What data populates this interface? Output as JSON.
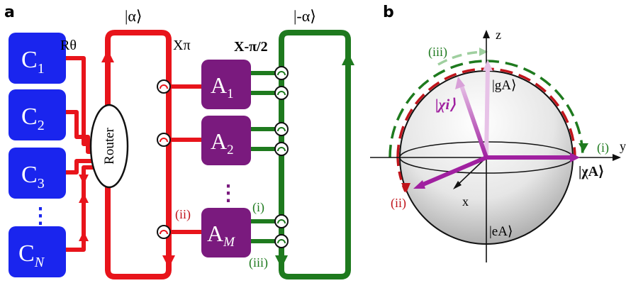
{
  "panel_a": {
    "label": "a",
    "alpha_top": "|α⟩",
    "minus_alpha_top": "|-α⟩",
    "r_theta": "Rθ",
    "x_pi": "Xπ",
    "x_minus_pi_half": "X-π/2",
    "router": "Router",
    "controls": [
      {
        "main": "C",
        "sub": "1"
      },
      {
        "main": "C",
        "sub": "2"
      },
      {
        "main": "C",
        "sub": "3"
      },
      {
        "main": "C",
        "sub": "N"
      }
    ],
    "control_ellipsis": "⋮",
    "ancillas": [
      {
        "main": "A",
        "sub": "1"
      },
      {
        "main": "A",
        "sub": "2"
      },
      {
        "main": "A",
        "sub": "M"
      }
    ],
    "ancilla_ellipsis": "⋮",
    "label_i": "(i)",
    "label_ii": "(ii)",
    "label_iii": "(iii)",
    "colors": {
      "red": "#e8141b",
      "green": "#1e7a1e",
      "blue": "#1a25ee",
      "purple": "#7a1a7e"
    }
  },
  "panel_b": {
    "label": "b",
    "axis_z": "z",
    "axis_x": "x",
    "axis_y": "y",
    "ket_g": "|gA⟩",
    "ket_e": "|eA⟩",
    "ket_chi_i": "|χi⟩",
    "ket_chi_a": "|χA⟩",
    "label_i": "(i)",
    "label_ii": "(ii)",
    "label_iii": "(iii)",
    "colors": {
      "magenta": "#a020a0",
      "light_magenta": "#d8a0d8"
    }
  }
}
